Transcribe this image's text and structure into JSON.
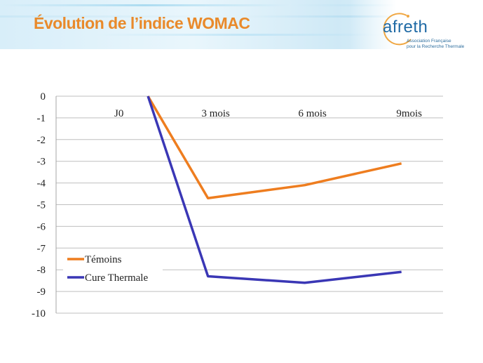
{
  "slide": {
    "title": "Évolution de l’indice WOMAC",
    "logo_name": "afreth",
    "logo_subtitle_line1": "Association Française",
    "logo_subtitle_line2": "pour la Recherche Thermale",
    "accent_color": "#e98a2b"
  },
  "chart_data": {
    "type": "line",
    "categories": [
      "J0",
      "3 mois",
      "6 mois",
      "9mois"
    ],
    "series": [
      {
        "name": "Témoins",
        "color": "#ee7d1f",
        "values": [
          0,
          -4.7,
          -4.1,
          -3.1
        ]
      },
      {
        "name": "Cure Thermale",
        "color": "#3a37b5",
        "values": [
          0,
          -8.3,
          -8.6,
          -8.1
        ]
      }
    ],
    "ylim": [
      -10,
      0
    ],
    "yticks": [
      "0",
      "-1",
      "-2",
      "-3",
      "-4",
      "-5",
      "-6",
      "-7",
      "-8",
      "-9",
      "-10"
    ],
    "grid": true,
    "legend_position": "bottom-left inside",
    "x_axis_position": "top"
  }
}
